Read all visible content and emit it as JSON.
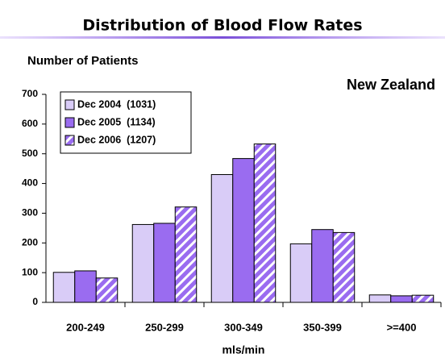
{
  "chart_data": {
    "type": "bar",
    "title": "Distribution of Blood Flow Rates",
    "y_label": "Number of Patients",
    "x_label": "mls/min",
    "annotation": "New Zealand",
    "categories": [
      "200-249",
      "250-299",
      "300-349",
      "350-399",
      ">=400"
    ],
    "series": [
      {
        "name": "Dec 2004  (1031)",
        "color": "#d9ccf7",
        "hatch": false,
        "values": [
          101,
          262,
          430,
          197,
          25
        ]
      },
      {
        "name": "Dec 2005  (1134)",
        "color": "#9a6cf0",
        "hatch": false,
        "values": [
          106,
          266,
          484,
          245,
          22
        ]
      },
      {
        "name": "Dec 2006  (1207)",
        "color": "#9a6cf0",
        "hatch": true,
        "values": [
          82,
          321,
          533,
          235,
          24
        ]
      }
    ],
    "ylim": [
      0,
      700
    ],
    "yticks": [
      0,
      100,
      200,
      300,
      400,
      500,
      600,
      700
    ],
    "legend": "upper left"
  }
}
